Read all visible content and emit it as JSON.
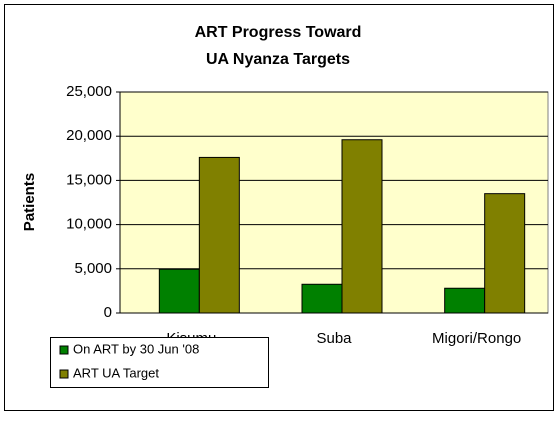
{
  "chart_data": {
    "type": "bar",
    "title": [
      "ART Progress Toward",
      "UA Nyanza Targets"
    ],
    "y_label": "Patients",
    "categories": [
      "Kisumu",
      "Suba",
      "Migori/Rongo"
    ],
    "series": [
      {
        "name": "On ART by 30 Jun '08",
        "color": "#008000",
        "values": [
          4950,
          3250,
          2800
        ]
      },
      {
        "name": "ART UA Target",
        "color": "#808000",
        "values": [
          17600,
          19600,
          13500
        ]
      }
    ],
    "ylim": [
      0,
      25000
    ],
    "yticks": [
      0,
      {
        "value": 5000,
        "label": "5,000"
      },
      {
        "value": 10000,
        "label": "10,000"
      },
      {
        "value": 15000,
        "label": "15,000"
      },
      {
        "value": 20000,
        "label": "20,000"
      },
      {
        "value": 25000,
        "label": "25,000"
      }
    ],
    "grid": true,
    "plot_background": "#ffffcc"
  }
}
